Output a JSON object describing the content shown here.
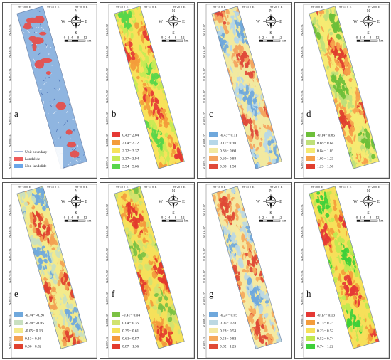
{
  "panels": [
    {
      "letter": "a",
      "kind": "binary",
      "legend": [
        {
          "label": "Unit boundary",
          "type": "line",
          "color": "#4a6fb5"
        },
        {
          "label": "Landslide",
          "type": "box",
          "color": "#ee5a5a"
        },
        {
          "label": "Non-landslide",
          "type": "box",
          "color": "#6aa5e8"
        }
      ]
    },
    {
      "letter": "b",
      "palette": [
        "#e53935",
        "#f39c3b",
        "#f7e25b",
        "#c8ea55",
        "#58d64a"
      ],
      "legend": [
        "0.43− 2.04",
        "2.04− 2.72",
        "2.72− 3.37",
        "3.37− 3.94",
        "3.94− 5.66"
      ]
    },
    {
      "letter": "c",
      "palette": [
        "#6fa8dc",
        "#b5d7e8",
        "#f2e9a0",
        "#f4a460",
        "#e04a3a"
      ],
      "legend": [
        "-0.43− 0.11",
        "0.11− 0.36",
        "0.36− 0.60",
        "0.60− 0.88",
        "0.88− 1.50"
      ]
    },
    {
      "letter": "d",
      "palette": [
        "#6dbf3a",
        "#bfe07a",
        "#f5ea72",
        "#f6a04b",
        "#e03e2e"
      ],
      "legend": [
        "-0.14− 0.65",
        "0.65− 0.84",
        "0.84− 1.03",
        "1.03− 1.23",
        "1.23− 1.56"
      ]
    },
    {
      "letter": "e",
      "palette": [
        "#6fa8dc",
        "#c9e0c0",
        "#f3ea8c",
        "#f3a152",
        "#e0412f"
      ],
      "legend": [
        "-0.74− -0.26",
        "-0.26− -0.05",
        "-0.05− 0.13",
        "0.13− 0.36",
        "0.36− 0.82"
      ]
    },
    {
      "letter": "f",
      "palette": [
        "#7bc144",
        "#d1e36f",
        "#f5e15b",
        "#f39a3d",
        "#e33a2c"
      ],
      "legend": [
        "-0.41− 0.04",
        "0.04− 0.35",
        "0.35− 0.61",
        "0.61− 0.87",
        "0.87− 1.36"
      ]
    },
    {
      "letter": "g",
      "palette": [
        "#6fa8dc",
        "#bcd8e2",
        "#f4e9a2",
        "#f5a95c",
        "#e04a36"
      ],
      "legend": [
        "-0.24− 0.05",
        "0.05− 0.28",
        "0.28− 0.53",
        "0.53− 0.82",
        "0.82− 1.25"
      ]
    },
    {
      "letter": "h",
      "palette": [
        "#e53935",
        "#f39c3b",
        "#f6e05a",
        "#bfe84f",
        "#3ecf3a"
      ],
      "legend": [
        "-0.17− 0.13",
        "0.13− 0.23",
        "0.23− 0.52",
        "0.52− 0.74",
        "0.74− 1.22"
      ]
    }
  ],
  "ticks": {
    "top": [
      "99°10′0″E",
      "99°15′0″E",
      "99°20′0″E"
    ],
    "left": [
      "26°3′0″N",
      "26°0′0″N",
      "25°57′0″N",
      "25°54′0″N",
      "25°51′0″N",
      "25°48′0″N",
      "25°45′0″N"
    ]
  },
  "compass": {
    "n": "N",
    "s": "S",
    "e": "E",
    "w": "W"
  },
  "scale_bar": {
    "labels": [
      "0",
      "2",
      "4",
      "8",
      "12"
    ],
    "unit": "km"
  }
}
